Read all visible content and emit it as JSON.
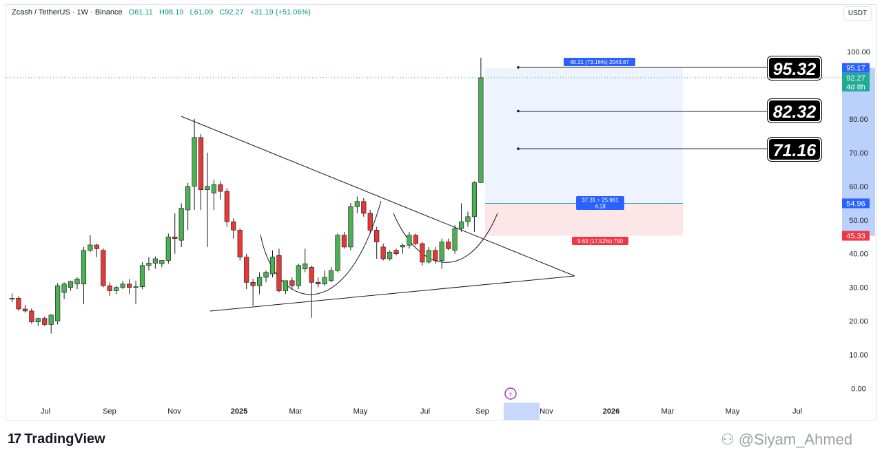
{
  "header": {
    "symbol": "Zcash / TetherUS · 1W · Binance",
    "open": "O61.11",
    "high": "H98.19",
    "low": "L61.09",
    "close": "C92.27",
    "change": "+31.19 (+51.06%)"
  },
  "currency_button": "USDT",
  "price_tags": {
    "target_level": "95.17",
    "current_price": "92.27",
    "countdown": "4d 8h",
    "entry_level": "54.96",
    "stop_level": "45.33"
  },
  "targets": [
    "95.32",
    "82.32",
    "71.16"
  ],
  "position_tool": {
    "profit_label": "40.21 (73.16%) 2043.87",
    "ratio_line1": "37.31 ÷ 25.961",
    "ratio_line2": "4.18",
    "loss_label": "9.63 (17.52%) 750"
  },
  "footer": {
    "brand": "TradingView",
    "watermark": "@Siyam_Ahmed"
  },
  "colors": {
    "up": "#4caf50",
    "down": "#e53935",
    "blue": "#2962ff",
    "red": "#f23645",
    "green": "#22ab94"
  },
  "chart_data": {
    "type": "candlestick",
    "title": "Zcash / TetherUS · 1W · Binance",
    "ylim": [
      0,
      100
    ],
    "y_ticks": [
      100,
      90,
      80,
      70,
      60,
      50,
      40,
      30,
      20,
      10,
      0
    ],
    "x_ticks": [
      "Jul",
      "Sep",
      "Nov",
      "2025",
      "Mar",
      "May",
      "Jul",
      "Sep",
      "Nov",
      "2026",
      "Mar",
      "May",
      "Jul"
    ],
    "grid": false,
    "candles": [
      {
        "o": 26.5,
        "h": 28.2,
        "l": 25.6,
        "c": 26.8
      },
      {
        "o": 26.8,
        "h": 27.4,
        "l": 23.0,
        "c": 23.6
      },
      {
        "o": 23.6,
        "h": 24.8,
        "l": 22.5,
        "c": 23.0
      },
      {
        "o": 23.0,
        "h": 23.7,
        "l": 19.2,
        "c": 19.8
      },
      {
        "o": 19.8,
        "h": 21.0,
        "l": 18.6,
        "c": 20.8
      },
      {
        "o": 20.8,
        "h": 21.3,
        "l": 18.5,
        "c": 19.0
      },
      {
        "o": 19.0,
        "h": 22.0,
        "l": 16.3,
        "c": 21.8
      },
      {
        "o": 20.0,
        "h": 31.3,
        "l": 19.0,
        "c": 30.5
      },
      {
        "o": 28.5,
        "h": 31.5,
        "l": 26.5,
        "c": 31.0
      },
      {
        "o": 30.0,
        "h": 32.0,
        "l": 29.0,
        "c": 31.8
      },
      {
        "o": 31.0,
        "h": 33.0,
        "l": 29.5,
        "c": 32.5
      },
      {
        "o": 31.0,
        "h": 42.0,
        "l": 25.0,
        "c": 41.0
      },
      {
        "o": 41.0,
        "h": 45.5,
        "l": 40.5,
        "c": 42.6
      },
      {
        "o": 42.6,
        "h": 43.0,
        "l": 39.0,
        "c": 41.5
      },
      {
        "o": 41.0,
        "h": 41.6,
        "l": 30.0,
        "c": 30.5
      },
      {
        "o": 30.5,
        "h": 31.5,
        "l": 27.5,
        "c": 29.0
      },
      {
        "o": 29.0,
        "h": 30.5,
        "l": 28.0,
        "c": 30.0
      },
      {
        "o": 30.0,
        "h": 32.0,
        "l": 29.5,
        "c": 31.0
      },
      {
        "o": 31.0,
        "h": 32.5,
        "l": 28.0,
        "c": 30.0
      },
      {
        "o": 30.0,
        "h": 32.0,
        "l": 25.0,
        "c": 30.2
      },
      {
        "o": 30.2,
        "h": 37.5,
        "l": 29.5,
        "c": 36.5
      },
      {
        "o": 36.5,
        "h": 39.0,
        "l": 35.0,
        "c": 37.2
      },
      {
        "o": 37.2,
        "h": 39.2,
        "l": 35.5,
        "c": 38.5
      },
      {
        "o": 37.0,
        "h": 38.0,
        "l": 36.0,
        "c": 38.0
      },
      {
        "o": 38.0,
        "h": 46.0,
        "l": 37.0,
        "c": 45.0
      },
      {
        "o": 45.0,
        "h": 52.0,
        "l": 40.0,
        "c": 44.5
      },
      {
        "o": 44.0,
        "h": 55.0,
        "l": 42.0,
        "c": 53.5
      },
      {
        "o": 53.0,
        "h": 61.0,
        "l": 47.0,
        "c": 60.0
      },
      {
        "o": 60.0,
        "h": 80.0,
        "l": 53.0,
        "c": 74.5
      },
      {
        "o": 74.5,
        "h": 75.5,
        "l": 53.0,
        "c": 59.0
      },
      {
        "o": 59.0,
        "h": 70.0,
        "l": 42.0,
        "c": 60.0
      },
      {
        "o": 58.0,
        "h": 62.0,
        "l": 53.0,
        "c": 60.5
      },
      {
        "o": 60.5,
        "h": 61.5,
        "l": 56.0,
        "c": 58.5
      },
      {
        "o": 58.5,
        "h": 59.5,
        "l": 48.0,
        "c": 49.5
      },
      {
        "o": 49.5,
        "h": 50.5,
        "l": 44.5,
        "c": 47.0
      },
      {
        "o": 47.0,
        "h": 47.5,
        "l": 38.0,
        "c": 39.0
      },
      {
        "o": 39.0,
        "h": 40.0,
        "l": 29.5,
        "c": 31.5
      },
      {
        "o": 31.5,
        "h": 32.5,
        "l": 24.5,
        "c": 30.5
      },
      {
        "o": 30.5,
        "h": 34.5,
        "l": 28.0,
        "c": 33.0
      },
      {
        "o": 33.0,
        "h": 35.0,
        "l": 31.5,
        "c": 34.5
      },
      {
        "o": 34.0,
        "h": 41.0,
        "l": 33.0,
        "c": 39.0
      },
      {
        "o": 39.5,
        "h": 41.5,
        "l": 28.5,
        "c": 29.0
      },
      {
        "o": 29.0,
        "h": 31.0,
        "l": 28.0,
        "c": 32.0
      },
      {
        "o": 32.0,
        "h": 33.0,
        "l": 29.5,
        "c": 30.5
      },
      {
        "o": 30.5,
        "h": 37.0,
        "l": 29.5,
        "c": 36.5
      },
      {
        "o": 35.5,
        "h": 41.5,
        "l": 34.5,
        "c": 37.0
      },
      {
        "o": 36.0,
        "h": 36.5,
        "l": 21.0,
        "c": 31.5
      },
      {
        "o": 31.5,
        "h": 33.0,
        "l": 30.0,
        "c": 31.0
      },
      {
        "o": 31.0,
        "h": 35.0,
        "l": 30.5,
        "c": 33.0
      },
      {
        "o": 32.0,
        "h": 36.0,
        "l": 31.5,
        "c": 35.0
      },
      {
        "o": 35.0,
        "h": 46.0,
        "l": 34.5,
        "c": 45.5
      },
      {
        "o": 45.5,
        "h": 46.5,
        "l": 41.5,
        "c": 42.0
      },
      {
        "o": 42.0,
        "h": 55.0,
        "l": 41.0,
        "c": 54.0
      },
      {
        "o": 54.0,
        "h": 57.0,
        "l": 52.0,
        "c": 55.5
      },
      {
        "o": 55.5,
        "h": 56.5,
        "l": 51.0,
        "c": 52.0
      },
      {
        "o": 52.0,
        "h": 53.0,
        "l": 46.0,
        "c": 47.0
      },
      {
        "o": 47.0,
        "h": 48.0,
        "l": 38.5,
        "c": 43.5
      },
      {
        "o": 42.0,
        "h": 43.0,
        "l": 38.0,
        "c": 38.5
      },
      {
        "o": 38.5,
        "h": 41.0,
        "l": 38.0,
        "c": 40.5
      },
      {
        "o": 41.0,
        "h": 41.5,
        "l": 39.5,
        "c": 40.0
      },
      {
        "o": 42.0,
        "h": 43.0,
        "l": 40.0,
        "c": 42.5
      },
      {
        "o": 42.5,
        "h": 46.5,
        "l": 41.5,
        "c": 45.5
      },
      {
        "o": 45.5,
        "h": 46.0,
        "l": 42.5,
        "c": 43.0
      },
      {
        "o": 43.0,
        "h": 43.5,
        "l": 36.5,
        "c": 37.5
      },
      {
        "o": 37.5,
        "h": 42.0,
        "l": 37.0,
        "c": 41.0
      },
      {
        "o": 41.0,
        "h": 42.0,
        "l": 37.0,
        "c": 38.0
      },
      {
        "o": 38.0,
        "h": 44.5,
        "l": 35.5,
        "c": 43.5
      },
      {
        "o": 43.5,
        "h": 44.5,
        "l": 41.0,
        "c": 41.5
      },
      {
        "o": 41.0,
        "h": 48.5,
        "l": 40.0,
        "c": 47.5
      },
      {
        "o": 47.5,
        "h": 55.0,
        "l": 46.5,
        "c": 49.5
      },
      {
        "o": 49.5,
        "h": 52.5,
        "l": 48.0,
        "c": 51.0
      },
      {
        "o": 51.0,
        "h": 61.5,
        "l": 46.5,
        "c": 61.1
      },
      {
        "o": 61.11,
        "h": 98.19,
        "l": 61.09,
        "c": 92.27
      }
    ]
  }
}
